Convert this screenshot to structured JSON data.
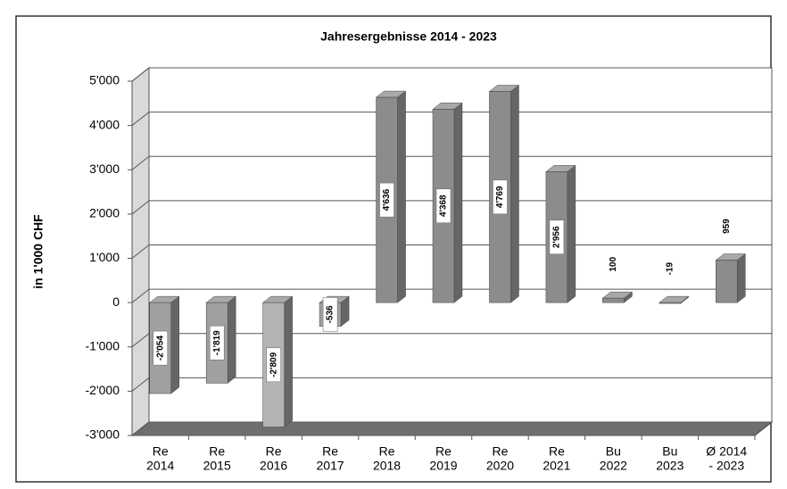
{
  "chart_data": {
    "type": "bar3d",
    "title": "Jahresergebnisse 2014 - 2023",
    "y_axis_label": "in 1'000 CHF",
    "categories": [
      [
        "Re",
        "2014"
      ],
      [
        "Re",
        "2015"
      ],
      [
        "Re",
        "2016"
      ],
      [
        "Re",
        "2017"
      ],
      [
        "Re",
        "2018"
      ],
      [
        "Re",
        "2019"
      ],
      [
        "Re",
        "2020"
      ],
      [
        "Re",
        "2021"
      ],
      [
        "Bu",
        "2022"
      ],
      [
        "Bu",
        "2023"
      ],
      [
        "Ø 2014",
        "- 2023"
      ]
    ],
    "values": [
      -2054,
      -1819,
      -2809,
      -536,
      4636,
      4368,
      4769,
      2956,
      100,
      -19,
      959
    ],
    "value_labels": [
      "-2'054",
      "-1'819",
      "-2'809",
      "-536",
      "4'636",
      "4'368",
      "4'769",
      "2'956",
      "100",
      "-19",
      "959"
    ],
    "color": "#8c8c8c",
    "ylim": [
      -3000,
      5000
    ],
    "yticks": [
      {
        "value": -3000,
        "label": "-3'000"
      },
      {
        "value": -2000,
        "label": "-2'000"
      },
      {
        "value": -1000,
        "label": "-1'000"
      },
      0,
      {
        "value": 1000,
        "label": "1'000"
      },
      {
        "value": 2000,
        "label": "2'000"
      },
      {
        "value": 3000,
        "label": "3'000"
      },
      {
        "value": 4000,
        "label": "4'000"
      },
      {
        "value": 5000,
        "label": "5'000"
      }
    ],
    "grid": true
  }
}
